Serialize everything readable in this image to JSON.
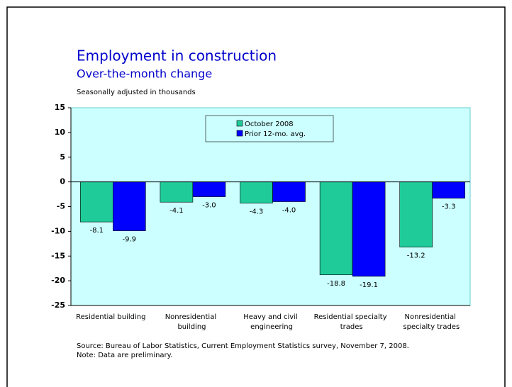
{
  "chart_data": {
    "type": "bar",
    "title": "Employment in construction",
    "subtitle": "Over-the-month change",
    "y_axis_label": "Seasonally adjusted in thousands",
    "categories": [
      "Residential building",
      "Nonresidential building",
      "Heavy and civil engineering",
      "Residential specialty trades",
      "Nonresidential specialty trades"
    ],
    "series": [
      {
        "name": "October 2008",
        "color": "#1fcc99",
        "values": [
          -8.1,
          -4.1,
          -4.3,
          -18.8,
          -13.2
        ],
        "value_labels": [
          "-8.1",
          "-4.1",
          "-4.3",
          "-18.8",
          "-13.2"
        ]
      },
      {
        "name": "Prior 12-mo. avg.",
        "color": "#0000ff",
        "values": [
          -9.9,
          -3.0,
          -4.0,
          -19.1,
          -3.3
        ],
        "value_labels": [
          "-9.9",
          "-3.0",
          "-4.0",
          "-19.1",
          "-3.3"
        ]
      }
    ],
    "ylim": [
      -25,
      15
    ],
    "yticks": [
      -25,
      -20,
      -15,
      -10,
      -5,
      0,
      5,
      10,
      15
    ],
    "plot_background": "#ccffff",
    "legend": "top",
    "source": "Source:  Bureau of Labor Statistics, Current Employment Statistics survey, November 7, 2008.",
    "note": "Note:  Data are preliminary."
  }
}
